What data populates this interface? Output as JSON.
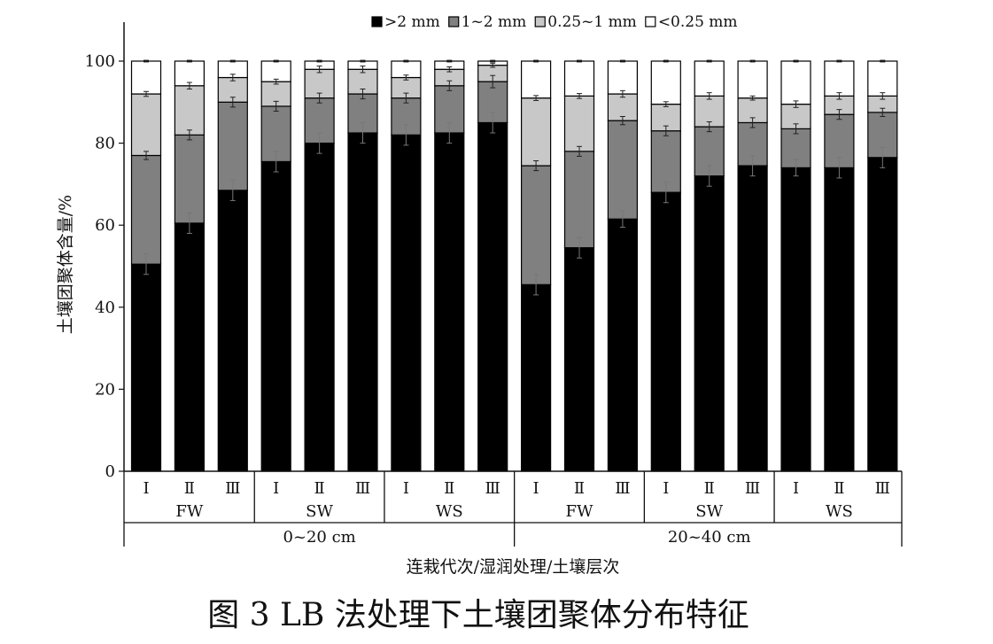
{
  "chart_data": {
    "type": "bar",
    "stacked": true,
    "caption": "图 3   LB 法处理下土壤团聚体分布特征",
    "ylabel": "土壤团聚体含量/%",
    "xlabel": "连栽代次/湿润处理/土壤层次",
    "ylim": [
      0,
      100
    ],
    "yticks": [
      0,
      20,
      40,
      60,
      80,
      100
    ],
    "legend_position": "top",
    "categories": [
      "Ⅰ",
      "Ⅱ",
      "Ⅲ",
      "Ⅰ",
      "Ⅱ",
      "Ⅲ",
      "Ⅰ",
      "Ⅱ",
      "Ⅲ",
      "Ⅰ",
      "Ⅱ",
      "Ⅲ",
      "Ⅰ",
      "Ⅱ",
      "Ⅲ",
      "Ⅰ",
      "Ⅱ",
      "Ⅲ"
    ],
    "treatment_groups": [
      {
        "label": "FW",
        "start": 0,
        "end": 2
      },
      {
        "label": "SW",
        "start": 3,
        "end": 5
      },
      {
        "label": "WS",
        "start": 6,
        "end": 8
      },
      {
        "label": "FW",
        "start": 9,
        "end": 11
      },
      {
        "label": "SW",
        "start": 12,
        "end": 14
      },
      {
        "label": "WS",
        "start": 15,
        "end": 17
      }
    ],
    "layer_groups": [
      {
        "label": "0~20 cm",
        "start": 0,
        "end": 8
      },
      {
        "label": "20~40 cm",
        "start": 9,
        "end": 17
      }
    ],
    "series": [
      {
        "name": ">2 mm",
        "color": "#000000",
        "values": [
          50.5,
          60.5,
          68.5,
          75.5,
          80.0,
          82.5,
          82.0,
          82.5,
          85.0,
          45.5,
          54.5,
          61.5,
          68.0,
          72.0,
          74.5,
          74.0,
          74.0,
          76.5
        ],
        "errors": [
          2.5,
          2.5,
          2.5,
          2.5,
          2.5,
          2.5,
          2.5,
          2.5,
          2.5,
          2.5,
          2.5,
          2.0,
          2.5,
          2.5,
          2.5,
          2.0,
          2.5,
          2.5
        ]
      },
      {
        "name": "1~2 mm",
        "color": "#808080",
        "values": [
          26.5,
          21.5,
          21.5,
          13.5,
          11.0,
          9.5,
          9.0,
          11.5,
          10.0,
          29.0,
          23.5,
          24.0,
          15.0,
          12.0,
          10.5,
          9.5,
          13.0,
          11.0
        ],
        "errors": [
          1.0,
          1.2,
          1.2,
          1.2,
          1.2,
          1.2,
          1.2,
          1.2,
          1.5,
          1.2,
          1.2,
          1.0,
          1.2,
          1.2,
          1.2,
          1.2,
          1.2,
          1.0
        ]
      },
      {
        "name": "0.25~1 mm",
        "color": "#c8c8c8",
        "values": [
          15.0,
          12.0,
          6.0,
          6.0,
          7.0,
          6.0,
          5.0,
          4.0,
          4.0,
          16.5,
          13.5,
          6.5,
          6.5,
          7.5,
          6.0,
          6.0,
          4.5,
          4.0
        ],
        "errors": [
          0.6,
          0.8,
          0.8,
          0.6,
          0.8,
          0.8,
          0.6,
          0.6,
          0.5,
          0.6,
          0.6,
          0.8,
          0.6,
          0.8,
          0.5,
          0.8,
          0.8,
          0.8
        ]
      },
      {
        "name": "<0.25 mm",
        "color": "#ffffff",
        "values": [
          8.0,
          6.0,
          4.0,
          5.0,
          2.0,
          2.0,
          4.0,
          2.0,
          1.0,
          9.0,
          8.5,
          8.0,
          10.5,
          8.5,
          9.0,
          10.5,
          8.5,
          8.5
        ],
        "errors": [
          0.2,
          0.2,
          0.2,
          0.2,
          0.2,
          0.2,
          0.2,
          0.2,
          0.2,
          0.2,
          0.2,
          0.2,
          0.2,
          0.2,
          0.2,
          0.2,
          0.2,
          0.2
        ]
      }
    ]
  }
}
